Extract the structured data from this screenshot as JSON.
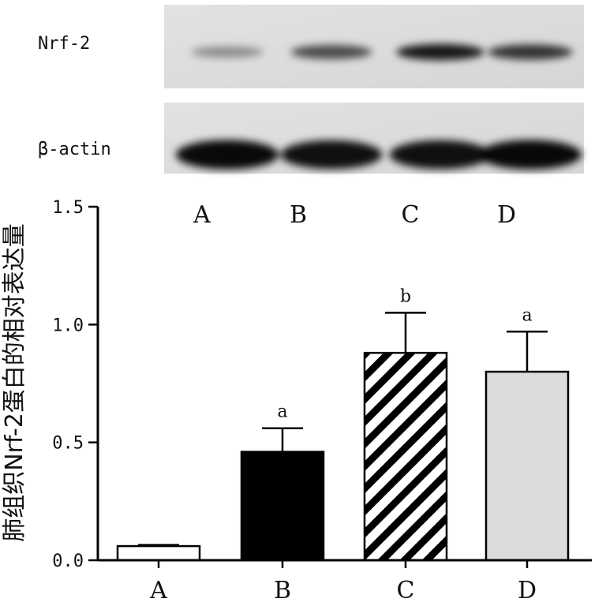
{
  "blot": {
    "rows": [
      {
        "label": "Nrf-2",
        "band_intensity": [
          0.15,
          0.55,
          0.85,
          0.7
        ]
      },
      {
        "label": "β-actin",
        "band_intensity": [
          0.95,
          0.9,
          0.9,
          0.95
        ]
      }
    ],
    "lanes": [
      "A",
      "B",
      "C",
      "D"
    ]
  },
  "chart_data": {
    "type": "bar",
    "categories": [
      "A",
      "B",
      "C",
      "D"
    ],
    "values": [
      0.06,
      0.46,
      0.88,
      0.8
    ],
    "errors": [
      0.005,
      0.1,
      0.17,
      0.17
    ],
    "significance": [
      "",
      "a",
      "b",
      "a"
    ],
    "bar_fills": [
      "white",
      "black",
      "diagonal-stripes",
      "light-gray"
    ],
    "title": "",
    "xlabel": "",
    "ylabel": "肺组织Nrf-2蛋白的相对表达量",
    "ylim": [
      0,
      1.5
    ],
    "yticks": [
      "0.0",
      "0.5",
      "1.0",
      "1.5"
    ],
    "grid": false,
    "colors": {
      "black": "#000000",
      "light_gray": "#dcdcdc",
      "white": "#ffffff"
    }
  }
}
